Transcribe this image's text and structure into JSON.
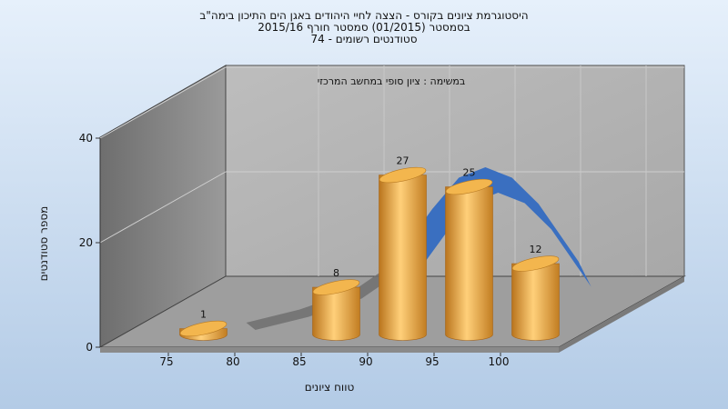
{
  "chart_data": {
    "type": "bar",
    "title_lines": [
      "היסטוגרמת ציונים בקורס - הצצה לחיי היהודים באגן הים התיכון בימה\"ב",
      "בסמסטר  (01/2015)  סמסטר חורף 2015/16",
      "סטודנטים רשומים - 74"
    ],
    "annotation": "במשימה : ציון סופי במחשב המרכזי",
    "xlabel": "טווח ציונים",
    "ylabel": "מספר סטודנטים",
    "x_ticks": [
      "75",
      "80",
      "85",
      "90",
      "95",
      "100"
    ],
    "y_ticks": [
      "0",
      "20",
      "40"
    ],
    "ylim": [
      0,
      40
    ],
    "grid": true,
    "bars": [
      {
        "center": 77.5,
        "value": 1,
        "label": "1"
      },
      {
        "center": 87.5,
        "value": 8,
        "label": "8"
      },
      {
        "center": 92.5,
        "value": 27,
        "label": "27"
      },
      {
        "center": 97.5,
        "value": 25,
        "label": "25"
      },
      {
        "center": 102.5,
        "value": 12,
        "label": "12"
      }
    ],
    "curve": {
      "x": [
        81,
        85,
        89,
        93,
        95,
        97,
        99,
        101,
        103,
        106
      ],
      "y": [
        4,
        6.5,
        10,
        17,
        24,
        30,
        32,
        30,
        25,
        14
      ]
    },
    "colors": {
      "bar": "#e8a53b",
      "curve": "#3a6fc0",
      "curve_back": "#6e6e6e",
      "wall": "#b4b4b4",
      "side_wall": "#8c8c8c",
      "floor": "#9e9e9e"
    }
  }
}
